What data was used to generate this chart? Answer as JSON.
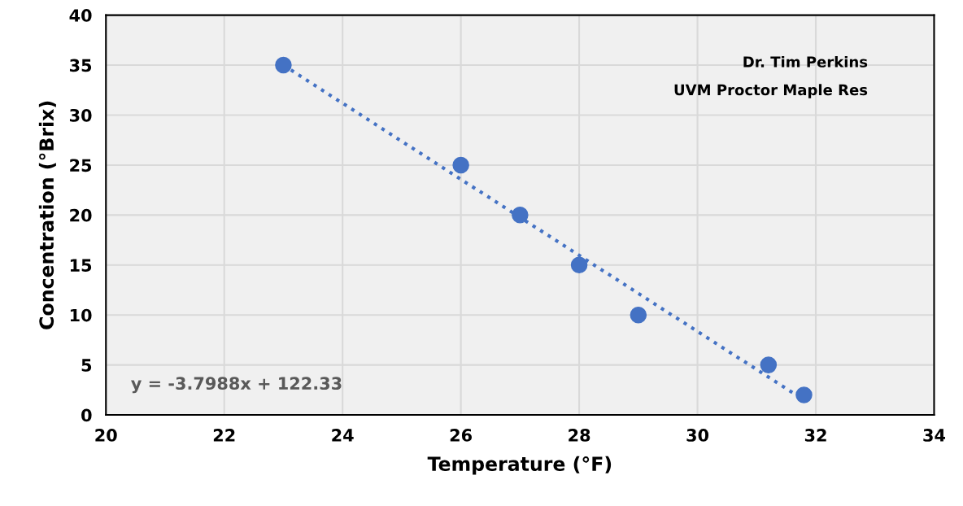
{
  "chart_data": {
    "type": "scatter",
    "xlabel": "Temperature (°F)",
    "ylabel": "Concentration (°Brix)",
    "x": [
      23,
      26,
      27,
      28,
      29,
      31.2,
      31.8
    ],
    "series": [
      {
        "color": "#4472c4",
        "values": [
          35,
          25,
          20,
          15,
          10,
          5,
          2
        ],
        "marker": "circle"
      },
      {
        "type": "line",
        "color": "#4472c4",
        "x": [
          23,
          31.8
        ],
        "values": [
          35,
          1.5
        ],
        "line_style": "dotted",
        "marker": "none"
      }
    ],
    "annotations": [
      "y = -3.7988x + 122.33",
      "Dr. Tim Perkins",
      "UVM Proctor Maple Res"
    ],
    "xlim": [
      20,
      34
    ],
    "xticks": [
      20,
      22,
      24,
      26,
      28,
      30,
      32,
      34
    ],
    "ylim": [
      0,
      40
    ],
    "yticks": [
      0,
      5,
      10,
      15,
      20,
      25,
      30,
      35,
      40
    ],
    "grid": true
  }
}
